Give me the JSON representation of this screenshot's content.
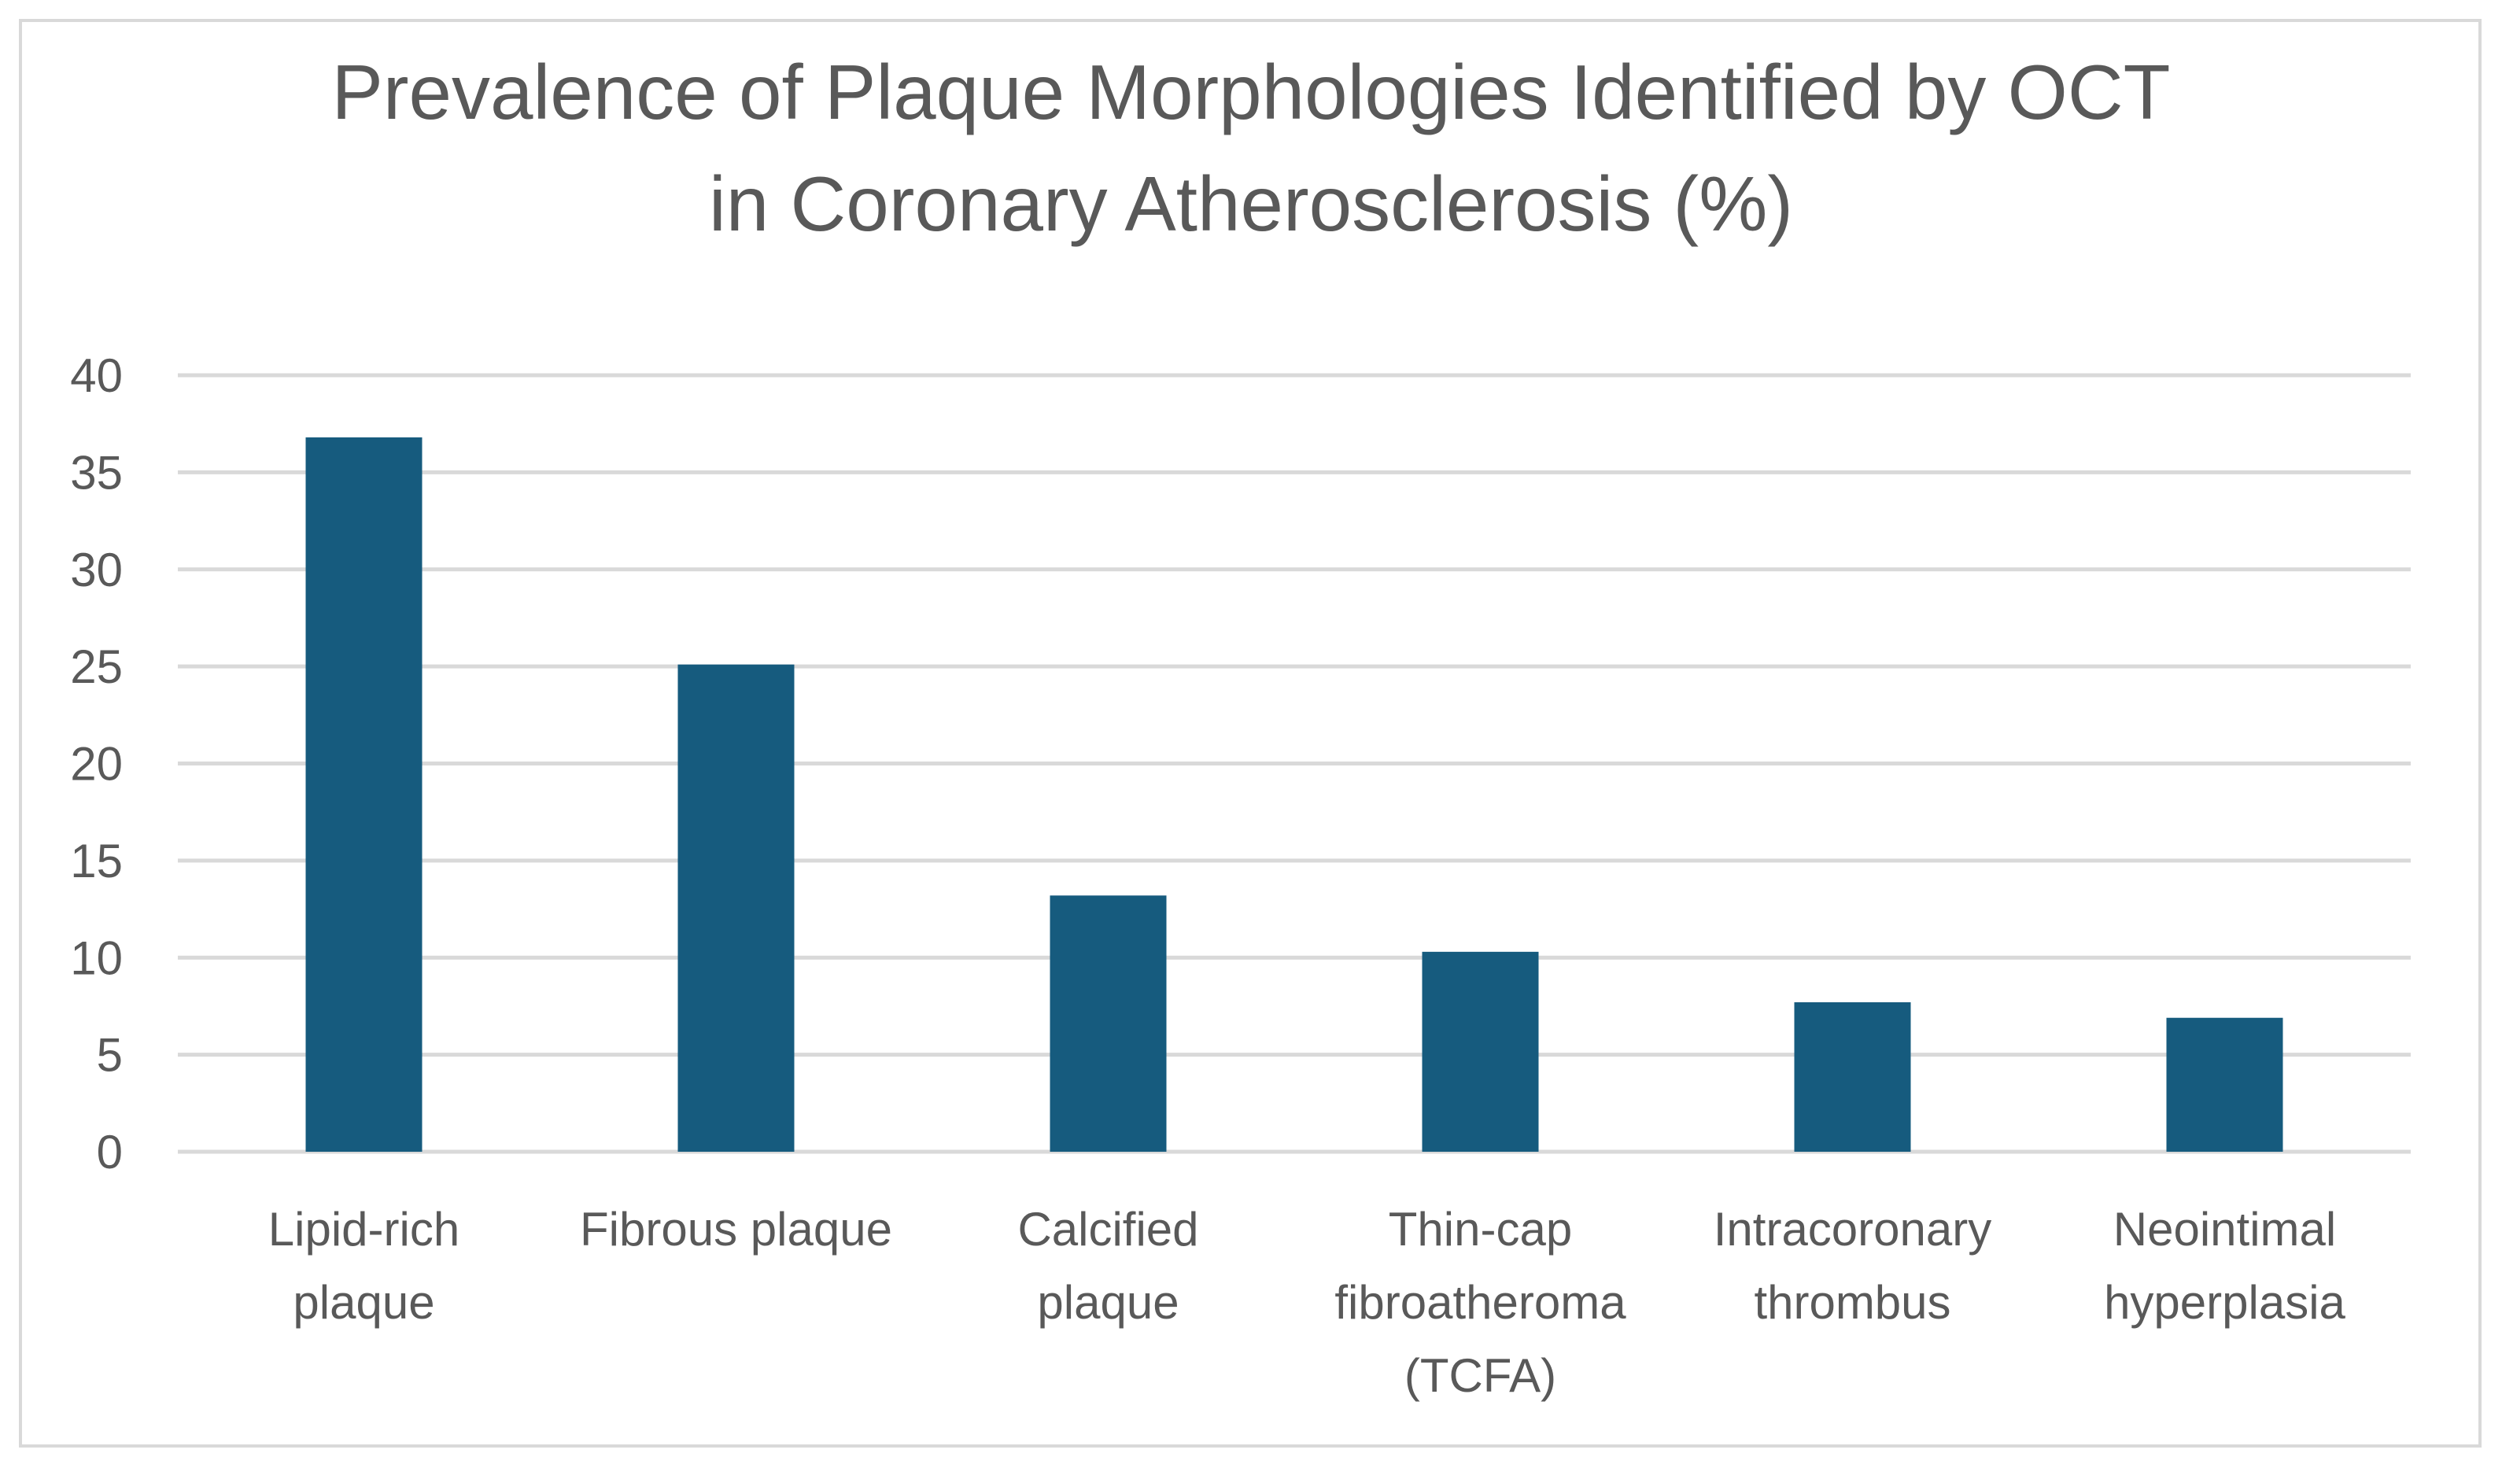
{
  "chart_data": {
    "type": "bar",
    "title_lines": [
      "Prevalence of Plaque Morphologies Identified by OCT",
      "in Coronary Atherosclerosis (%)"
    ],
    "categories": [
      [
        "Lipid-rich",
        "plaque"
      ],
      [
        "Fibrous plaque"
      ],
      [
        "Calcified",
        "plaque"
      ],
      [
        "Thin-cap",
        "fibroatheroma",
        "(TCFA)"
      ],
      [
        "Intracoronary",
        "thrombus"
      ],
      [
        "Neointimal",
        "hyperplasia"
      ]
    ],
    "values": [
      36.8,
      25.1,
      13.2,
      10.3,
      7.7,
      6.9
    ],
    "ylim": [
      0,
      40
    ],
    "yticks": [
      0,
      5,
      10,
      15,
      20,
      25,
      30,
      35,
      40
    ],
    "grid": true,
    "legend": "none",
    "colors": {
      "bar": "#165b7e",
      "grid": "#d9d9d9",
      "text": "#595959"
    }
  }
}
